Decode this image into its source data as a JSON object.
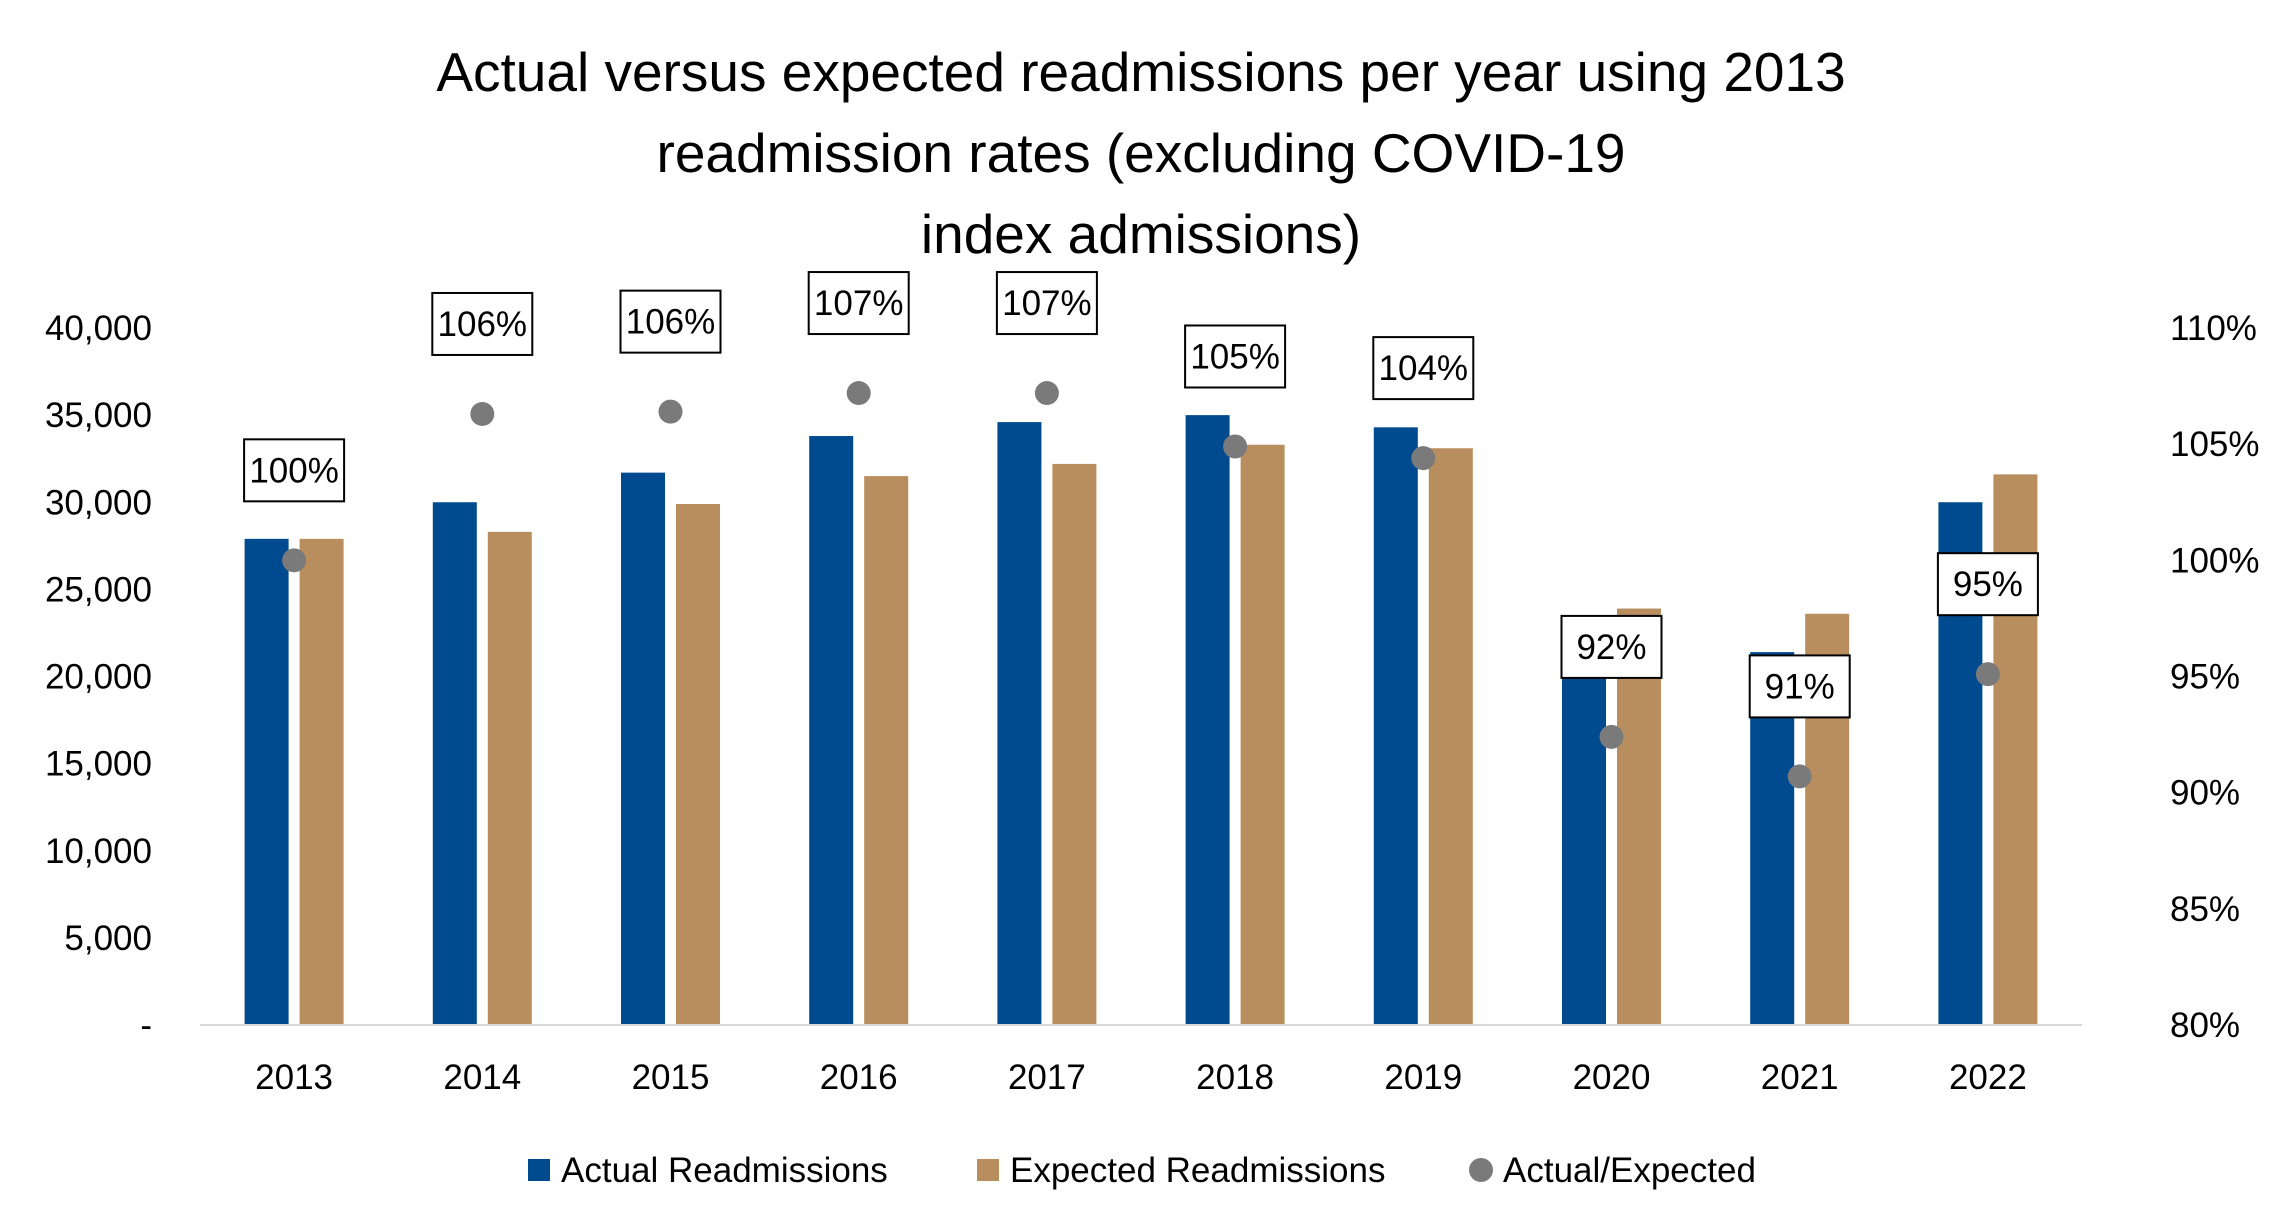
{
  "chart_data": {
    "type": "bar",
    "title_lines": [
      "Actual versus expected readmissions per year using 2013",
      "readmission rates (excluding COVID-19",
      "index admissions)"
    ],
    "categories": [
      "2013",
      "2014",
      "2015",
      "2016",
      "2017",
      "2018",
      "2019",
      "2020",
      "2021",
      "2022"
    ],
    "series": [
      {
        "name": "Actual Readmissions",
        "kind": "bar",
        "axis": "left",
        "color": "#004A8F",
        "values": [
          27900,
          30000,
          31700,
          33800,
          34600,
          35000,
          34300,
          22000,
          21400,
          30000
        ]
      },
      {
        "name": "Expected Readmissions",
        "kind": "bar",
        "axis": "left",
        "color": "#B98E5E",
        "values": [
          27900,
          28300,
          29900,
          31500,
          32200,
          33300,
          33100,
          23900,
          23600,
          31600
        ]
      },
      {
        "name": "Actual/Expected",
        "kind": "scatter",
        "axis": "right",
        "color": "#7A7A7A",
        "values": [
          100,
          106.3,
          106.4,
          107.2,
          107.2,
          104.9,
          104.4,
          92.4,
          90.7,
          95.1
        ],
        "labels": [
          "100%",
          "106%",
          "106%",
          "107%",
          "107%",
          "105%",
          "104%",
          "92%",
          "91%",
          "95%"
        ]
      }
    ],
    "y_left": {
      "ylim": [
        0,
        40000
      ],
      "ticks": [
        0,
        5000,
        10000,
        15000,
        20000,
        25000,
        30000,
        35000,
        40000
      ],
      "tick_labels": [
        "-",
        "5,000",
        "10,000",
        "15,000",
        "20,000",
        "25,000",
        "30,000",
        "35,000",
        "40,000"
      ]
    },
    "y_right": {
      "ylim": [
        80,
        110
      ],
      "ticks": [
        80,
        85,
        90,
        95,
        100,
        105,
        110
      ],
      "tick_labels": [
        "80%",
        "85%",
        "90%",
        "95%",
        "100%",
        "105%",
        "110%"
      ]
    },
    "xlabel": "",
    "ylabel": "",
    "grid": false,
    "legend_position": "bottom",
    "legend": [
      "Actual Readmissions",
      "Expected Readmissions",
      "Actual/Expected"
    ]
  }
}
